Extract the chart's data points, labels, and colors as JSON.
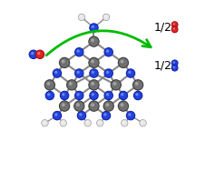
{
  "bg_color": "#ffffff",
  "carbon_color": "#707070",
  "carbon_edge": "#404040",
  "nitrogen_color": "#2244dd",
  "nitrogen_edge": "#1122aa",
  "hydrogen_color": "#e8e8e8",
  "hydrogen_edge": "#888888",
  "bond_color": "#888888",
  "bond_lw": 1.5,
  "arrow_color": "#00bb00",
  "o2_color": "#dd2222",
  "o2_edge": "#aa1111",
  "n2_color": "#2244dd",
  "n2_edge": "#1122aa",
  "no_n_color": "#2244dd",
  "no_o_color": "#dd2222",
  "font_size_label": 9,
  "product_label": "1/2",
  "cr": 0.03,
  "nr": 0.025,
  "hr": 0.02,
  "dr": 0.018
}
